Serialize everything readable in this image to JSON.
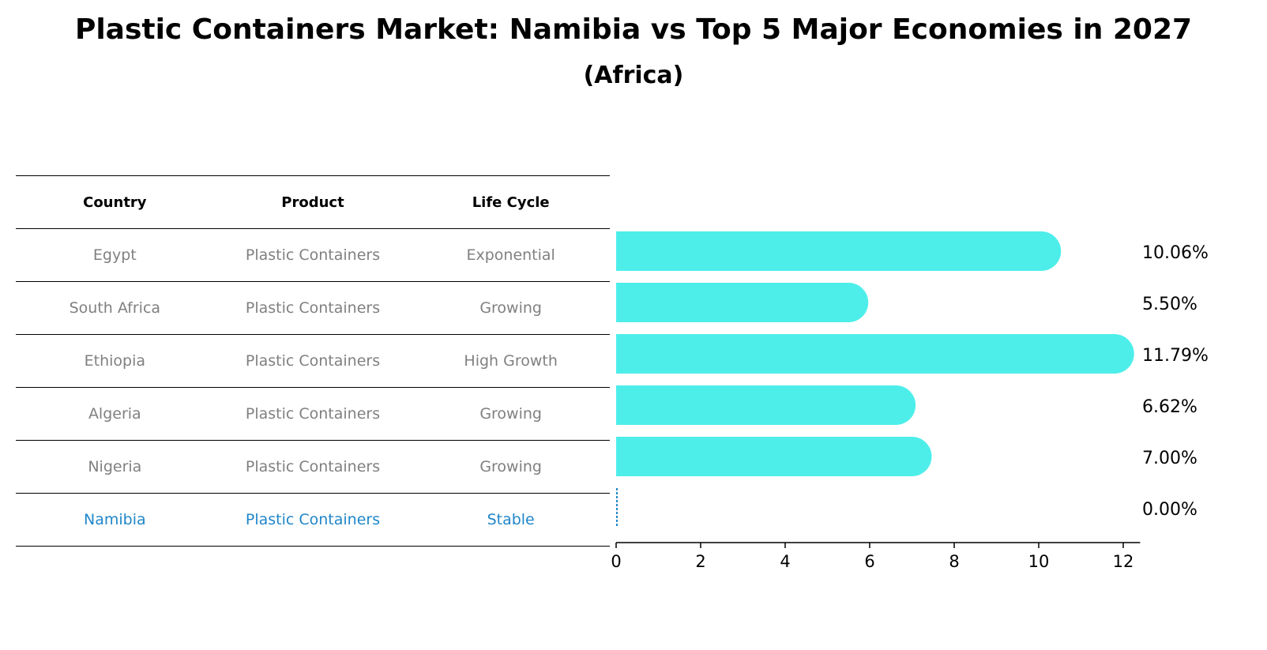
{
  "title": "Plastic Containers Market: Namibia vs Top 5 Major Economies in 2027",
  "subtitle": "(Africa)",
  "table": {
    "headers": [
      "Country",
      "Product",
      "Life Cycle"
    ],
    "rows": [
      [
        "Egypt",
        "Plastic Containers",
        "Exponential"
      ],
      [
        "South Africa",
        "Plastic Containers",
        "Growing"
      ],
      [
        "Ethiopia",
        "Plastic Containers",
        "High Growth"
      ],
      [
        "Algeria",
        "Plastic Containers",
        "Growing"
      ],
      [
        "Nigeria",
        "Plastic Containers",
        "Growing"
      ],
      [
        "Namibia",
        "Plastic Containers",
        "Stable"
      ]
    ]
  },
  "colors": {
    "bar": "#4deeea",
    "highlight": "#1f86c9",
    "muted": "#808080"
  },
  "chart_data": {
    "type": "bar",
    "orientation": "horizontal",
    "categories": [
      "Egypt",
      "South Africa",
      "Ethiopia",
      "Algeria",
      "Nigeria",
      "Namibia"
    ],
    "values": [
      10.06,
      5.5,
      11.79,
      6.62,
      7.0,
      0.0
    ],
    "value_labels": [
      "10.06%",
      "5.50%",
      "11.79%",
      "6.62%",
      "7.00%",
      "0.00%"
    ],
    "xlim": [
      0,
      12.4
    ],
    "xticks": [
      0,
      2,
      4,
      6,
      8,
      10,
      12
    ],
    "grid": false
  }
}
